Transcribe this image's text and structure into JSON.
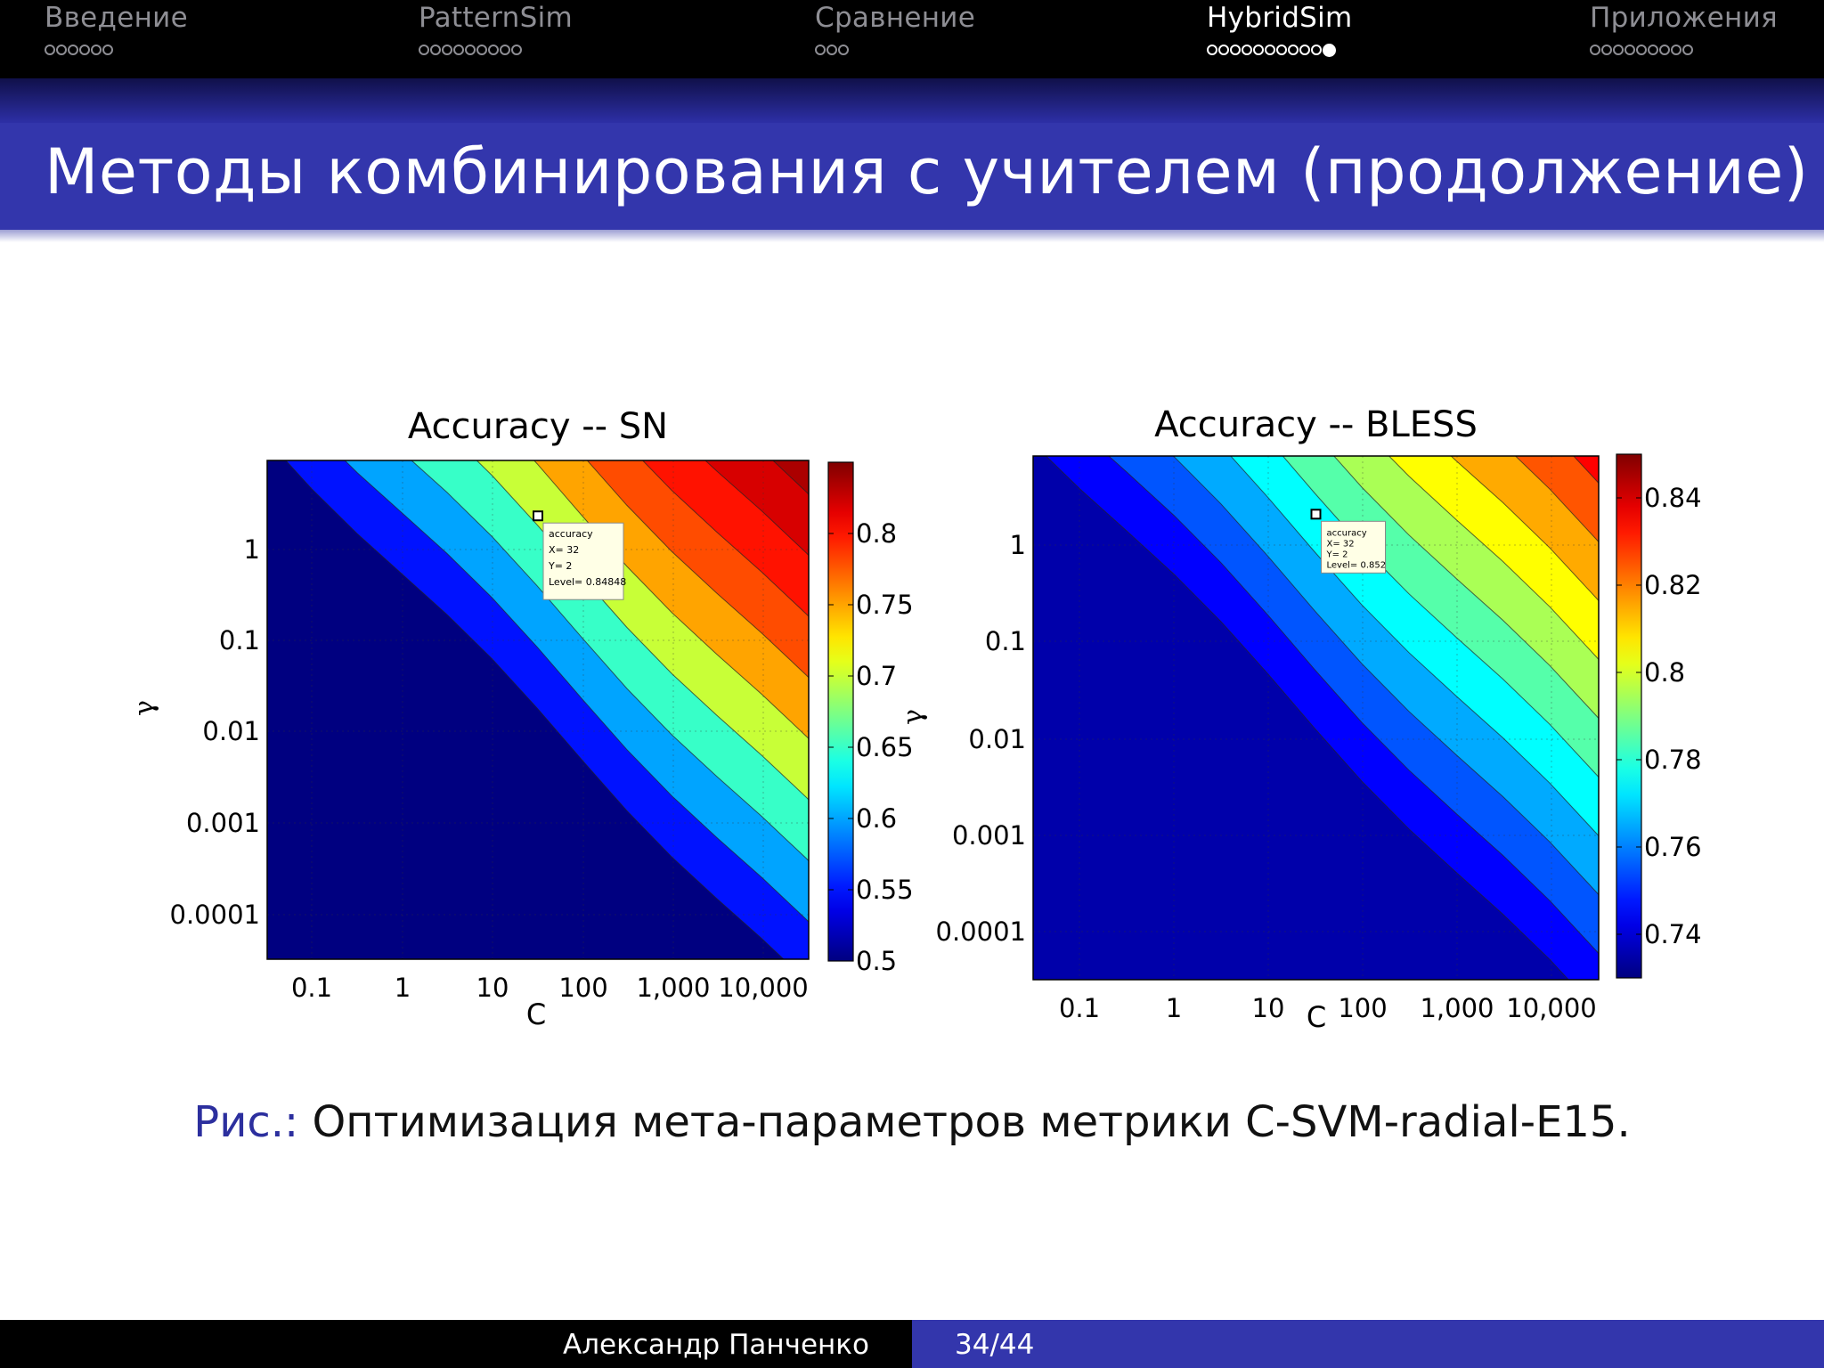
{
  "nav": {
    "sections": [
      {
        "label": "Введение",
        "dots": 6,
        "filled": 0,
        "active": false
      },
      {
        "label": "PatternSim",
        "dots": 9,
        "filled": 0,
        "active": false
      },
      {
        "label": "Сравнение",
        "dots": 3,
        "filled": 0,
        "active": false
      },
      {
        "label": "HybridSim",
        "dots": 10,
        "filled": 1,
        "active": true
      },
      {
        "label": "Приложения",
        "dots": 9,
        "filled": 0,
        "active": false
      }
    ]
  },
  "slide": {
    "title": "Методы комбинирования с учителем (продолжение)"
  },
  "caption": {
    "prefix": "Рис.:",
    "text": "Оптимизация мета-параметров метрики C-SVM-radial-E15."
  },
  "footer": {
    "author": "Александр Панченко",
    "page": "34/44"
  },
  "colors": {
    "nav_bg": "#000000",
    "title_bar": "#3336ac",
    "caption_prefix": "#2c2f9e",
    "footer_right": "#3336ac"
  },
  "chart_data": [
    {
      "type": "heatmap",
      "title": "Accuracy -- SN",
      "xlabel": "C",
      "ylabel": "γ",
      "x_scale": "log",
      "y_scale": "log",
      "x_ticks": [
        "0.1",
        "1",
        "10",
        "100",
        "1,000",
        "10,000"
      ],
      "y_ticks": [
        "1",
        "0.1",
        "0.01",
        "0.001",
        "0.0001"
      ],
      "xlim": [
        0.03125,
        32768
      ],
      "ylim": [
        3.05e-05,
        8
      ],
      "colorbar": {
        "min": 0.5,
        "max": 0.85,
        "ticks": [
          "0.8",
          "0.75",
          "0.7",
          "0.65",
          "0.6",
          "0.55",
          "0.5"
        ]
      },
      "contour_levels": [
        0.5,
        0.55,
        0.6,
        0.65,
        0.7,
        0.75,
        0.78,
        0.8,
        0.82,
        0.835,
        0.845
      ],
      "accuracy_by_region": [
        {
          "region": "low C, low γ",
          "accuracy": 0.52
        },
        {
          "region": "diagonal transition band",
          "accuracy": 0.7
        },
        {
          "region": "mid",
          "accuracy": 0.8
        },
        {
          "region": "high C, high γ",
          "accuracy": 0.845
        }
      ],
      "annotation": {
        "lines": [
          "accuracy",
          "X= 32",
          "Y= 2",
          "Level= 0.84848"
        ],
        "x": 32,
        "y": 2,
        "level": 0.84848
      }
    },
    {
      "type": "heatmap",
      "title": "Accuracy -- BLESS",
      "xlabel": "C",
      "ylabel": "γ",
      "x_scale": "log",
      "y_scale": "log",
      "x_ticks": [
        "0.1",
        "1",
        "10",
        "100",
        "1,000",
        "10,000"
      ],
      "y_ticks": [
        "1",
        "0.1",
        "0.01",
        "0.001",
        "0.0001"
      ],
      "xlim": [
        0.03125,
        32768
      ],
      "ylim": [
        3.05e-05,
        8
      ],
      "colorbar": {
        "min": 0.73,
        "max": 0.85,
        "ticks": [
          "0.84",
          "0.82",
          "0.8",
          "0.78",
          "0.76",
          "0.74"
        ]
      },
      "contour_levels": [
        0.735,
        0.745,
        0.755,
        0.765,
        0.775,
        0.785,
        0.795,
        0.805,
        0.815,
        0.825,
        0.835,
        0.845
      ],
      "accuracy_by_region": [
        {
          "region": "low C, low γ",
          "accuracy": 0.735
        },
        {
          "region": "diagonal transition band",
          "accuracy": 0.8
        },
        {
          "region": "mid",
          "accuracy": 0.825
        },
        {
          "region": "high C, high γ",
          "accuracy": 0.852
        }
      ],
      "annotation": {
        "lines": [
          "accuracy",
          "X= 32",
          "Y= 2",
          "Level= 0.852"
        ],
        "x": 32,
        "y": 2,
        "level": 0.852
      }
    }
  ]
}
